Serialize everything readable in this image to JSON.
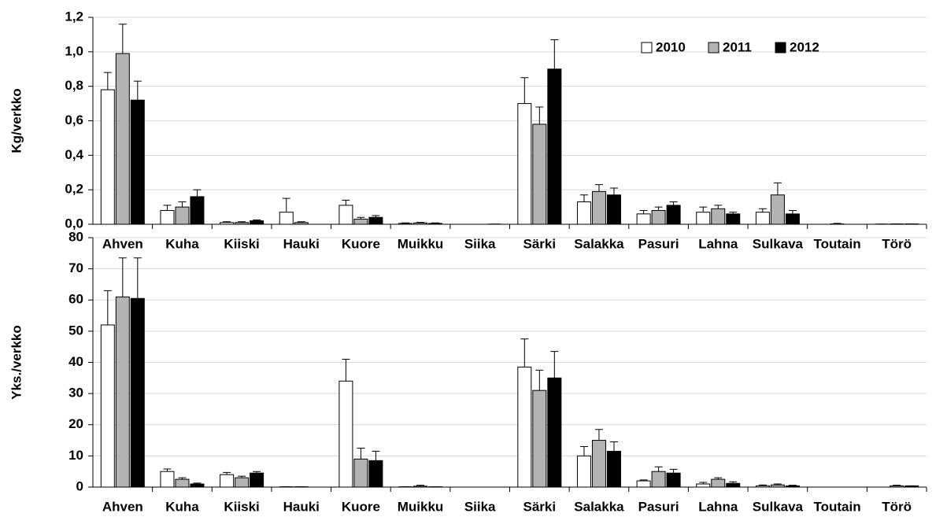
{
  "chart_data": [
    {
      "type": "bar",
      "y_label": "Kg/verkko",
      "categories": [
        "Ahven",
        "Kuha",
        "Kiiski",
        "Hauki",
        "Kuore",
        "Muikku",
        "Siika",
        "Särki",
        "Salakka",
        "Pasuri",
        "Lahna",
        "Sulkava",
        "Toutain",
        "Törö"
      ],
      "series": [
        {
          "name": "2010",
          "color": "#ffffff",
          "values": [
            0.78,
            0.08,
            0.01,
            0.07,
            0.11,
            0.005,
            0,
            0.7,
            0.13,
            0.06,
            0.07,
            0.07,
            0,
            0.001
          ],
          "errors": [
            0.1,
            0.03,
            0.005,
            0.08,
            0.03,
            0.003,
            0,
            0.15,
            0.04,
            0.02,
            0.03,
            0.02,
            0,
            0
          ]
        },
        {
          "name": "2011",
          "color": "#b3b3b3",
          "values": [
            0.99,
            0.1,
            0.01,
            0.01,
            0.03,
            0.008,
            0,
            0.58,
            0.19,
            0.08,
            0.09,
            0.17,
            0.002,
            0.002
          ],
          "errors": [
            0.17,
            0.03,
            0.005,
            0.005,
            0.01,
            0.003,
            0,
            0.1,
            0.04,
            0.02,
            0.02,
            0.07,
            0.003,
            0
          ]
        },
        {
          "name": "2012",
          "color": "#000000",
          "values": [
            0.72,
            0.16,
            0.02,
            0,
            0.04,
            0.005,
            0.001,
            0.9,
            0.17,
            0.11,
            0.06,
            0.06,
            0,
            0.002
          ],
          "errors": [
            0.11,
            0.04,
            0.005,
            0,
            0.01,
            0.003,
            0,
            0.17,
            0.04,
            0.02,
            0.01,
            0.02,
            0,
            0
          ]
        }
      ],
      "ylim": [
        0,
        1.2
      ],
      "yticks": [
        {
          "value": 0,
          "label": "0,0"
        },
        {
          "value": 0.2,
          "label": "0,2"
        },
        {
          "value": 0.4,
          "label": "0,4"
        },
        {
          "value": 0.6,
          "label": "0,6"
        },
        {
          "value": 0.8,
          "label": "0,8"
        },
        {
          "value": 1.0,
          "label": "1,0"
        },
        {
          "value": 1.2,
          "label": "1,2"
        }
      ],
      "grid": true,
      "legend": "top-right"
    },
    {
      "type": "bar",
      "y_label": "Yks./verkko",
      "categories": [
        "Ahven",
        "Kuha",
        "Kiiski",
        "Hauki",
        "Kuore",
        "Muikku",
        "Siika",
        "Särki",
        "Salakka",
        "Pasuri",
        "Lahna",
        "Sulkava",
        "Toutain",
        "Törö"
      ],
      "series": [
        {
          "color": "#ffffff",
          "values": [
            52,
            5,
            4,
            0.1,
            34,
            0.1,
            0,
            38.5,
            10,
            2,
            1,
            0.4,
            0,
            0
          ],
          "errors": [
            11,
            0.8,
            0.7,
            0,
            7,
            0,
            0,
            9,
            3,
            0.3,
            0.5,
            0.3,
            0,
            0
          ]
        },
        {
          "color": "#b3b3b3",
          "values": [
            61,
            2.5,
            3,
            0.1,
            9,
            0.3,
            0,
            31,
            15,
            5,
            2.5,
            0.7,
            0,
            0.4
          ],
          "errors": [
            12.5,
            0.5,
            0.5,
            0,
            3.5,
            0.3,
            0,
            6.5,
            3.5,
            1.5,
            0.5,
            0.3,
            0,
            0.2
          ]
        },
        {
          "color": "#000000",
          "values": [
            60.5,
            1,
            4.5,
            0,
            8.5,
            0.1,
            0,
            35,
            11.5,
            4.5,
            1.2,
            0.4,
            0,
            0.4
          ],
          "errors": [
            13,
            0.3,
            0.5,
            0,
            3,
            0,
            0,
            8.5,
            3,
            1.2,
            0.5,
            0.2,
            0,
            0
          ]
        }
      ],
      "ylim": [
        0,
        80
      ],
      "yticks": [
        0,
        10,
        20,
        30,
        40,
        50,
        60,
        70,
        80
      ],
      "grid": true
    }
  ]
}
